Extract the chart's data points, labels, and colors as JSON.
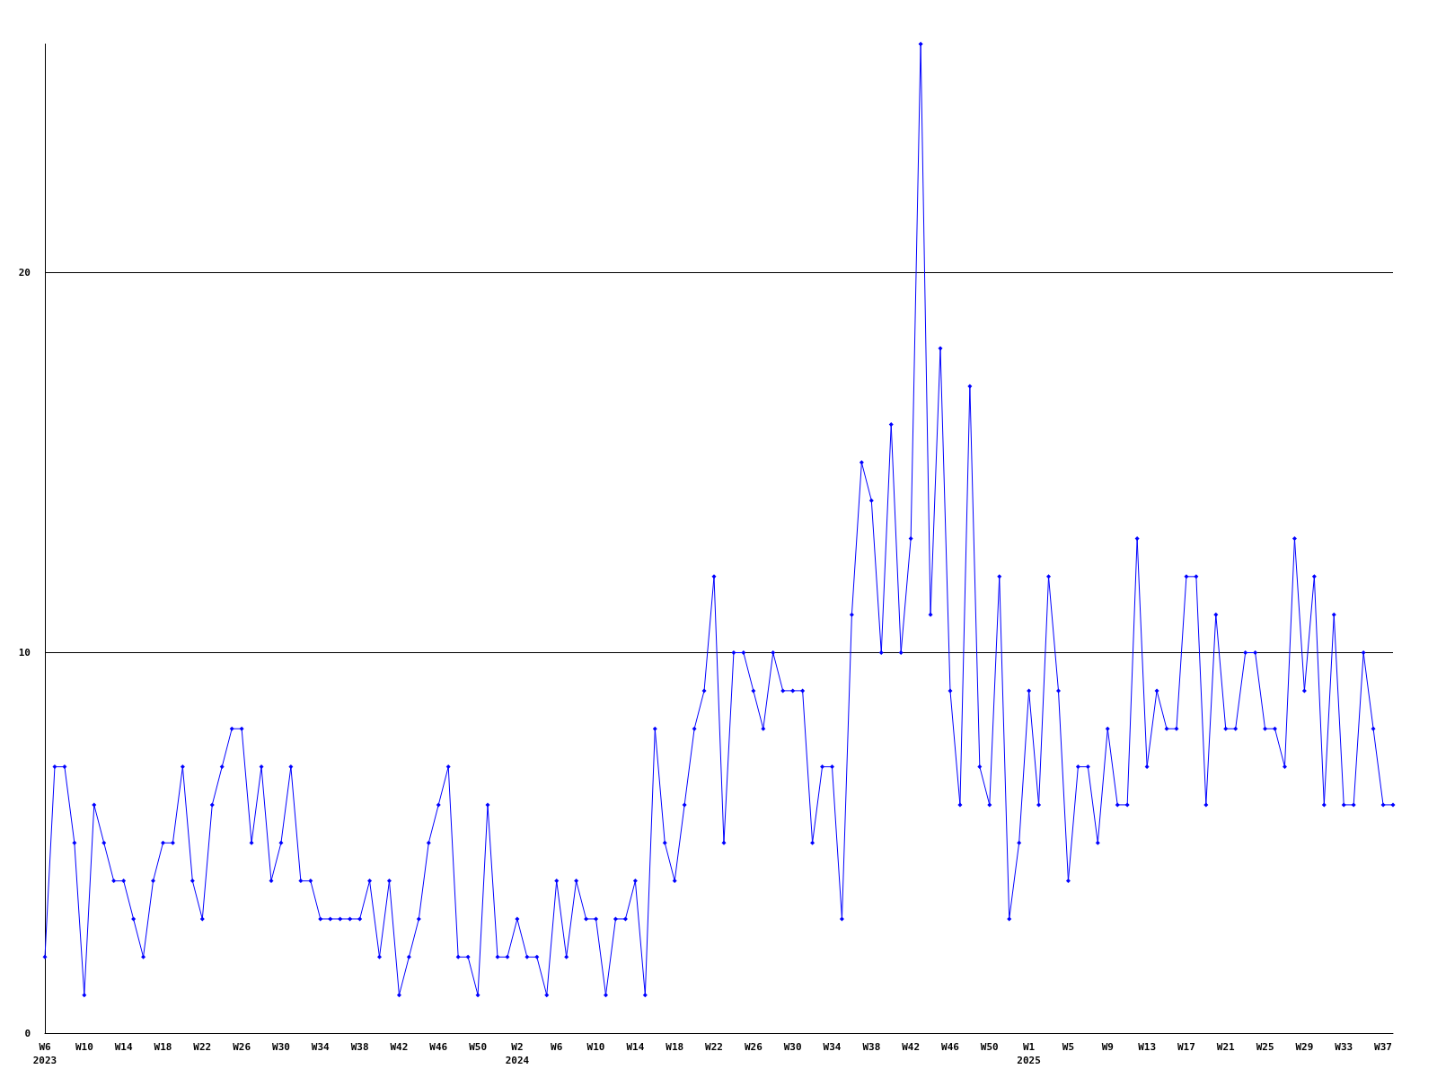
{
  "chart_data": {
    "type": "line",
    "categories": [
      "W6\n2023",
      null,
      null,
      null,
      "W10",
      null,
      null,
      null,
      "W14",
      null,
      null,
      null,
      "W18",
      null,
      null,
      null,
      "W22",
      null,
      null,
      null,
      "W26",
      null,
      null,
      null,
      "W30",
      null,
      null,
      null,
      "W34",
      null,
      null,
      null,
      "W38",
      null,
      null,
      null,
      "W42",
      null,
      null,
      null,
      "W46",
      null,
      null,
      null,
      "W50",
      null,
      null,
      null,
      "W2\n2024",
      null,
      null,
      null,
      "W6",
      null,
      null,
      null,
      "W10",
      null,
      null,
      null,
      "W14",
      null,
      null,
      null,
      "W18",
      null,
      null,
      null,
      "W22",
      null,
      null,
      null,
      "W26",
      null,
      null,
      null,
      "W30",
      null,
      null,
      null,
      "W34",
      null,
      null,
      null,
      "W38",
      null,
      null,
      null,
      "W42",
      null,
      null,
      null,
      "W46",
      null,
      null,
      null,
      "W50",
      null,
      null,
      null,
      "W1\n2025",
      null,
      null,
      null,
      "W5",
      null,
      null,
      null,
      "W9",
      null,
      null,
      null,
      "W13",
      null,
      null,
      null,
      "W17",
      null,
      null,
      null,
      "W21",
      null,
      null,
      null,
      "W25",
      null,
      null,
      null,
      "W29",
      null,
      null,
      null,
      "W33",
      null,
      null,
      null,
      "W37",
      null
    ],
    "series": [
      {
        "color": "#0000ff",
        "values": [
          2,
          7,
          7,
          5,
          1,
          6,
          5,
          4,
          4,
          3,
          2,
          4,
          5,
          5,
          7,
          4,
          3,
          6,
          7,
          8,
          8,
          5,
          7,
          4,
          5,
          7,
          4,
          4,
          3,
          3,
          3,
          3,
          3,
          4,
          2,
          4,
          1,
          2,
          3,
          5,
          6,
          7,
          2,
          2,
          1,
          6,
          2,
          2,
          3,
          2,
          2,
          1,
          4,
          2,
          4,
          3,
          3,
          1,
          3,
          3,
          4,
          1,
          8,
          5,
          4,
          6,
          8,
          9,
          12,
          5,
          10,
          10,
          9,
          8,
          10,
          9,
          9,
          9,
          5,
          7,
          7,
          3,
          11,
          15,
          14,
          10,
          16,
          10,
          13,
          26,
          11,
          18,
          9,
          6,
          17,
          7,
          6,
          12,
          3,
          5,
          9,
          6,
          12,
          9,
          4,
          7,
          7,
          5,
          8,
          6,
          6,
          13,
          7,
          9,
          8,
          8,
          12,
          12,
          6,
          11,
          8,
          8,
          10,
          10,
          8,
          8,
          7,
          13,
          9,
          12,
          6,
          11,
          6,
          6,
          10,
          8,
          6,
          6
        ]
      }
    ],
    "ylim": [
      0,
      26
    ],
    "yticks": [
      0,
      10,
      20
    ],
    "grid": "y",
    "marker": "diamond",
    "line_style": "solid"
  }
}
